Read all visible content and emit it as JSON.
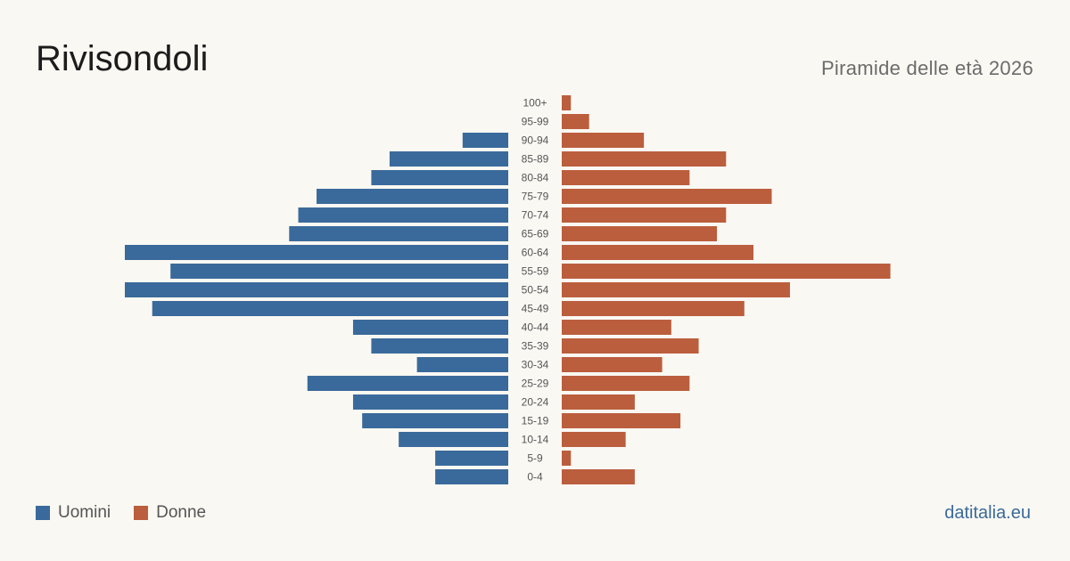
{
  "header": {
    "title": "Rivisondoli",
    "subtitle": "Piramide delle età 2026"
  },
  "legend": {
    "items": [
      {
        "label": "Uomini",
        "color": "#3a6a9b"
      },
      {
        "label": "Donne",
        "color": "#bb5e3d"
      }
    ]
  },
  "footer": {
    "brand": "datitalia.eu"
  },
  "chart_data": {
    "type": "bar",
    "orientation": "horizontal",
    "categories": [
      "100+",
      "95-99",
      "90-94",
      "85-89",
      "80-84",
      "75-79",
      "70-74",
      "65-69",
      "60-64",
      "55-59",
      "50-54",
      "45-49",
      "40-44",
      "35-39",
      "30-34",
      "25-29",
      "20-24",
      "15-19",
      "10-14",
      "5-9",
      "0-4"
    ],
    "series": [
      {
        "name": "Uomini",
        "color": "#3a6a9b",
        "values": [
          0,
          0,
          5,
          13,
          15,
          21,
          23,
          24,
          42,
          37,
          42,
          39,
          17,
          15,
          10,
          22,
          17,
          16,
          12,
          8,
          8
        ]
      },
      {
        "name": "Donne",
        "color": "#bb5e3d",
        "values": [
          1,
          3,
          9,
          18,
          14,
          23,
          18,
          17,
          21,
          36,
          25,
          20,
          12,
          15,
          11,
          14,
          8,
          13,
          7,
          1,
          8
        ]
      }
    ],
    "xlim": [
      0,
      42
    ],
    "grid": false,
    "legend_position": "bottom-left"
  }
}
